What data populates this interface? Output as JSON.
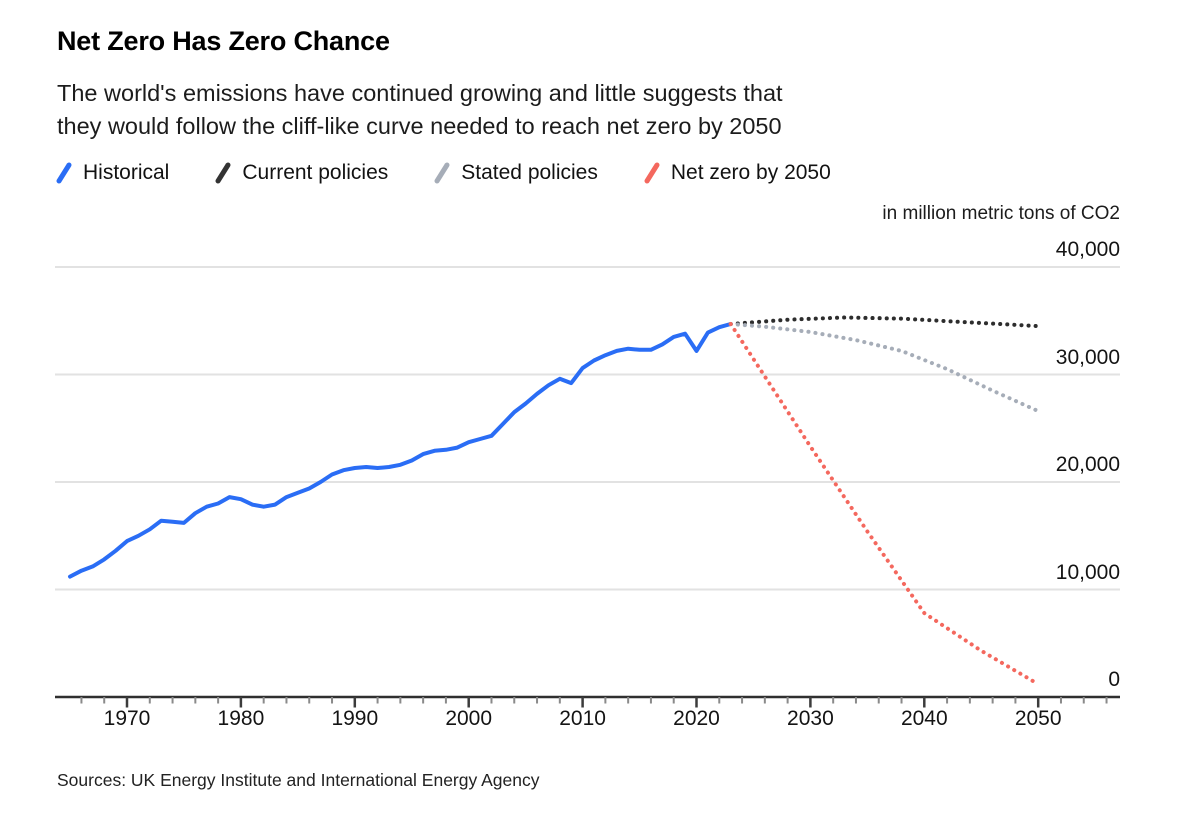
{
  "header": {
    "title": "Net Zero Has Zero Chance",
    "subtitle_lines": [
      "The world's emissions have continued growing and little suggests that",
      "they would follow the cliff-like curve needed to reach net zero by 2050"
    ]
  },
  "legend": {
    "items": [
      {
        "label": "Historical",
        "color": "#2a6df5"
      },
      {
        "label": "Current policies",
        "color": "#333333"
      },
      {
        "label": "Stated policies",
        "color": "#a6adb8"
      },
      {
        "label": "Net zero by 2050",
        "color": "#f4685e"
      }
    ]
  },
  "chart_data": {
    "type": "line",
    "title": "Net Zero Has Zero Chance",
    "unit_label": "in million metric tons of CO2",
    "xlabel": "",
    "ylabel": "in million metric tons of CO2",
    "xlim": [
      1963.5,
      2057.5
    ],
    "ylim": [
      0,
      42000
    ],
    "grid": true,
    "legend_position": "top",
    "x_axis": {
      "ticks": [
        {
          "year": 1970,
          "label": "1970"
        },
        {
          "year": 1980,
          "label": "1980"
        },
        {
          "year": 1990,
          "label": "1990"
        },
        {
          "year": 2000,
          "label": "2000"
        },
        {
          "year": 2010,
          "label": "2010"
        },
        {
          "year": 2020,
          "label": "2020"
        },
        {
          "year": 2030,
          "label": "2030"
        },
        {
          "year": 2040,
          "label": "2040"
        },
        {
          "year": 2050,
          "label": "2050"
        }
      ],
      "minor_tick_step_years": 2,
      "minor_tick_range": [
        1966,
        2056
      ]
    },
    "y_axis": {
      "ticks": [
        {
          "value": 40000,
          "label": "40,000"
        },
        {
          "value": 30000,
          "label": "30,000"
        },
        {
          "value": 20000,
          "label": "20,000"
        },
        {
          "value": 10000,
          "label": "10,000"
        },
        {
          "value": 0,
          "label": "0"
        }
      ]
    },
    "series": [
      {
        "name": "Historical",
        "color": "#2a6df5",
        "style": "solid",
        "points": [
          [
            1965,
            11200
          ],
          [
            1966,
            11750
          ],
          [
            1967,
            12150
          ],
          [
            1968,
            12800
          ],
          [
            1969,
            13600
          ],
          [
            1970,
            14500
          ],
          [
            1971,
            15000
          ],
          [
            1972,
            15600
          ],
          [
            1973,
            16400
          ],
          [
            1974,
            16300
          ],
          [
            1975,
            16200
          ],
          [
            1976,
            17100
          ],
          [
            1977,
            17700
          ],
          [
            1978,
            18000
          ],
          [
            1979,
            18600
          ],
          [
            1980,
            18400
          ],
          [
            1981,
            17900
          ],
          [
            1982,
            17700
          ],
          [
            1983,
            17900
          ],
          [
            1984,
            18600
          ],
          [
            1985,
            19000
          ],
          [
            1986,
            19400
          ],
          [
            1987,
            20000
          ],
          [
            1988,
            20700
          ],
          [
            1989,
            21100
          ],
          [
            1990,
            21300
          ],
          [
            1991,
            21400
          ],
          [
            1992,
            21300
          ],
          [
            1993,
            21400
          ],
          [
            1994,
            21600
          ],
          [
            1995,
            22000
          ],
          [
            1996,
            22600
          ],
          [
            1997,
            22900
          ],
          [
            1998,
            23000
          ],
          [
            1999,
            23200
          ],
          [
            2000,
            23700
          ],
          [
            2001,
            24000
          ],
          [
            2002,
            24300
          ],
          [
            2003,
            25400
          ],
          [
            2004,
            26500
          ],
          [
            2005,
            27300
          ],
          [
            2006,
            28200
          ],
          [
            2007,
            29000
          ],
          [
            2008,
            29600
          ],
          [
            2009,
            29200
          ],
          [
            2010,
            30600
          ],
          [
            2011,
            31300
          ],
          [
            2012,
            31800
          ],
          [
            2013,
            32200
          ],
          [
            2014,
            32400
          ],
          [
            2015,
            32300
          ],
          [
            2016,
            32300
          ],
          [
            2017,
            32800
          ],
          [
            2018,
            33500
          ],
          [
            2019,
            33800
          ],
          [
            2020,
            32200
          ],
          [
            2021,
            33900
          ],
          [
            2022,
            34400
          ],
          [
            2023,
            34700
          ]
        ]
      },
      {
        "name": "Current policies",
        "color": "#2d2d2d",
        "style": "dotted",
        "points": [
          [
            2023,
            34700
          ],
          [
            2028,
            35100
          ],
          [
            2033,
            35300
          ],
          [
            2038,
            35200
          ],
          [
            2043,
            34900
          ],
          [
            2050,
            34500
          ]
        ]
      },
      {
        "name": "Stated policies",
        "color": "#a6adb8",
        "style": "dotted",
        "points": [
          [
            2023,
            34700
          ],
          [
            2026,
            34450
          ],
          [
            2030,
            33950
          ],
          [
            2034,
            33200
          ],
          [
            2038,
            32200
          ],
          [
            2042,
            30500
          ],
          [
            2046,
            28500
          ],
          [
            2050,
            26600
          ]
        ]
      },
      {
        "name": "Net zero by 2050",
        "color": "#f4685e",
        "style": "dotted",
        "points": [
          [
            2023,
            34700
          ],
          [
            2030,
            23300
          ],
          [
            2035,
            15400
          ],
          [
            2040,
            7800
          ],
          [
            2045,
            4300
          ],
          [
            2050,
            1200
          ]
        ]
      }
    ]
  },
  "colors": {
    "gridline": "#e2e2e2",
    "axis_line": "#2f2f2f",
    "major_tick": "#3c3c3c",
    "minor_tick": "#8a8a8a"
  },
  "footer": {
    "sources": "Sources: UK Energy Institute and International Energy Agency"
  }
}
